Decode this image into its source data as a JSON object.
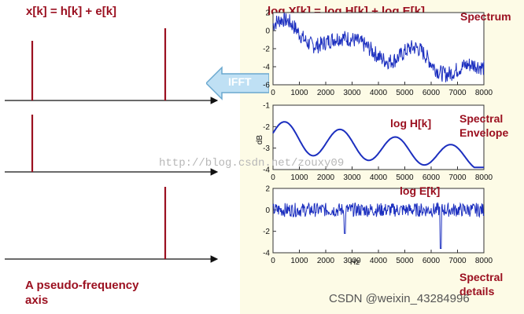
{
  "equations": {
    "left": "x[k] = h[k] + e[k]",
    "right": "log X[k] = log H[k] + log E[k]"
  },
  "labels": {
    "spectrum": "Spectrum",
    "spectral_envelope": [
      "Spectral",
      "Envelope"
    ],
    "spectral_details": [
      "Spectral",
      "details"
    ],
    "log_h": "log H[k]",
    "log_e": "log E[k]",
    "pseudo_frequency": [
      "A pseudo-frequency",
      "axis"
    ]
  },
  "ifft": {
    "label": "IFFT"
  },
  "watermark": "http://blog.csdn.net/zouxy09",
  "footer": "CSDN @weixin_43284996",
  "plots": {
    "x_ticks": [
      "0",
      "1000",
      "2000",
      "3000",
      "4000",
      "5000",
      "6000",
      "7000",
      "8000"
    ],
    "x_label": "Hz",
    "y_label_middle": "dB",
    "top_y_ticks": [
      "2",
      "0",
      "-2",
      "-4",
      "-6"
    ],
    "mid_y_ticks": [
      "-1",
      "-2",
      "-3",
      "-4"
    ],
    "bot_y_ticks": [
      "2",
      "0",
      "-2",
      "-4"
    ]
  },
  "colors": {
    "accent": "#9b1020",
    "signal": "#1c2fbf",
    "ifft_arrow": "#bfe0f4"
  }
}
